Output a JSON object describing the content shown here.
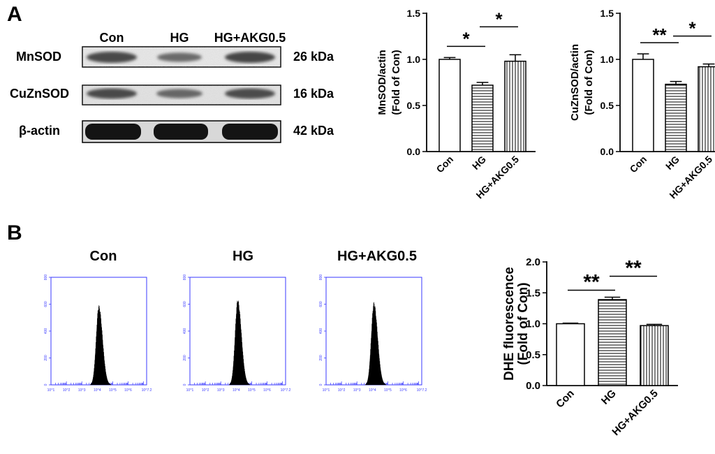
{
  "panel_a": {
    "label": "A",
    "blot": {
      "lane_labels": [
        "Con",
        "HG",
        "HG+AKG0.5"
      ],
      "rows": [
        {
          "protein": "MnSOD",
          "size": "26 kDa"
        },
        {
          "protein": "CuZnSOD",
          "size": "16 kDa"
        },
        {
          "protein": "β-actin",
          "size": "42 kDa"
        }
      ]
    }
  },
  "panel_b": {
    "label": "B",
    "histograms": {
      "titles": [
        "Con",
        "HG",
        "HG+AKG0.5"
      ],
      "y_ticks": [
        "0",
        "200",
        "400",
        "600",
        "800"
      ],
      "x_ticks": [
        "10^1",
        "10^2",
        "10^3",
        "10^4",
        "10^5",
        "10^6",
        "10^7.2"
      ],
      "peak_log": [
        4.1,
        4.1,
        4.1
      ],
      "peak_height": [
        540,
        580,
        560
      ]
    }
  },
  "chart_data": [
    {
      "type": "bar",
      "id": "mnsod",
      "categories": [
        "Con",
        "HG",
        "HG+AKG0.5"
      ],
      "values": [
        1.0,
        0.72,
        0.98
      ],
      "errors": [
        0.02,
        0.03,
        0.07
      ],
      "ylabel_lines": [
        "MnSOD/actin",
        "(Fold of Con)"
      ],
      "yticks": [
        "0.0",
        "0.5",
        "1.0",
        "1.5"
      ],
      "ylim": [
        0,
        1.5
      ],
      "patterns": [
        "none",
        "horizontal",
        "vertical"
      ],
      "significance": [
        {
          "from": 0,
          "to": 1,
          "label": "*"
        },
        {
          "from": 1,
          "to": 2,
          "label": "*"
        }
      ]
    },
    {
      "type": "bar",
      "id": "cuznsod",
      "categories": [
        "Con",
        "HG",
        "HG+AKG0.5"
      ],
      "values": [
        1.0,
        0.73,
        0.92
      ],
      "errors": [
        0.06,
        0.03,
        0.03
      ],
      "ylabel_lines": [
        "CuZnSOD/actin",
        "(Fold of Con)"
      ],
      "yticks": [
        "0.0",
        "0.5",
        "1.0",
        "1.5"
      ],
      "ylim": [
        0,
        1.5
      ],
      "patterns": [
        "none",
        "horizontal",
        "vertical"
      ],
      "significance": [
        {
          "from": 0,
          "to": 1,
          "label": "**"
        },
        {
          "from": 1,
          "to": 2,
          "label": "*"
        }
      ]
    },
    {
      "type": "bar",
      "id": "dhe",
      "categories": [
        "Con",
        "HG",
        "HG+AKG0.5"
      ],
      "values": [
        1.0,
        1.39,
        0.97
      ],
      "errors": [
        0.01,
        0.04,
        0.02
      ],
      "ylabel_lines": [
        "DHE fluorescence",
        "(Fold of Con)"
      ],
      "yticks": [
        "0.0",
        "0.5",
        "1.0",
        "1.5",
        "2.0"
      ],
      "ylim": [
        0,
        2.0
      ],
      "patterns": [
        "none",
        "horizontal",
        "vertical"
      ],
      "significance": [
        {
          "from": 0,
          "to": 1,
          "label": "**"
        },
        {
          "from": 1,
          "to": 2,
          "label": "**"
        }
      ]
    }
  ]
}
